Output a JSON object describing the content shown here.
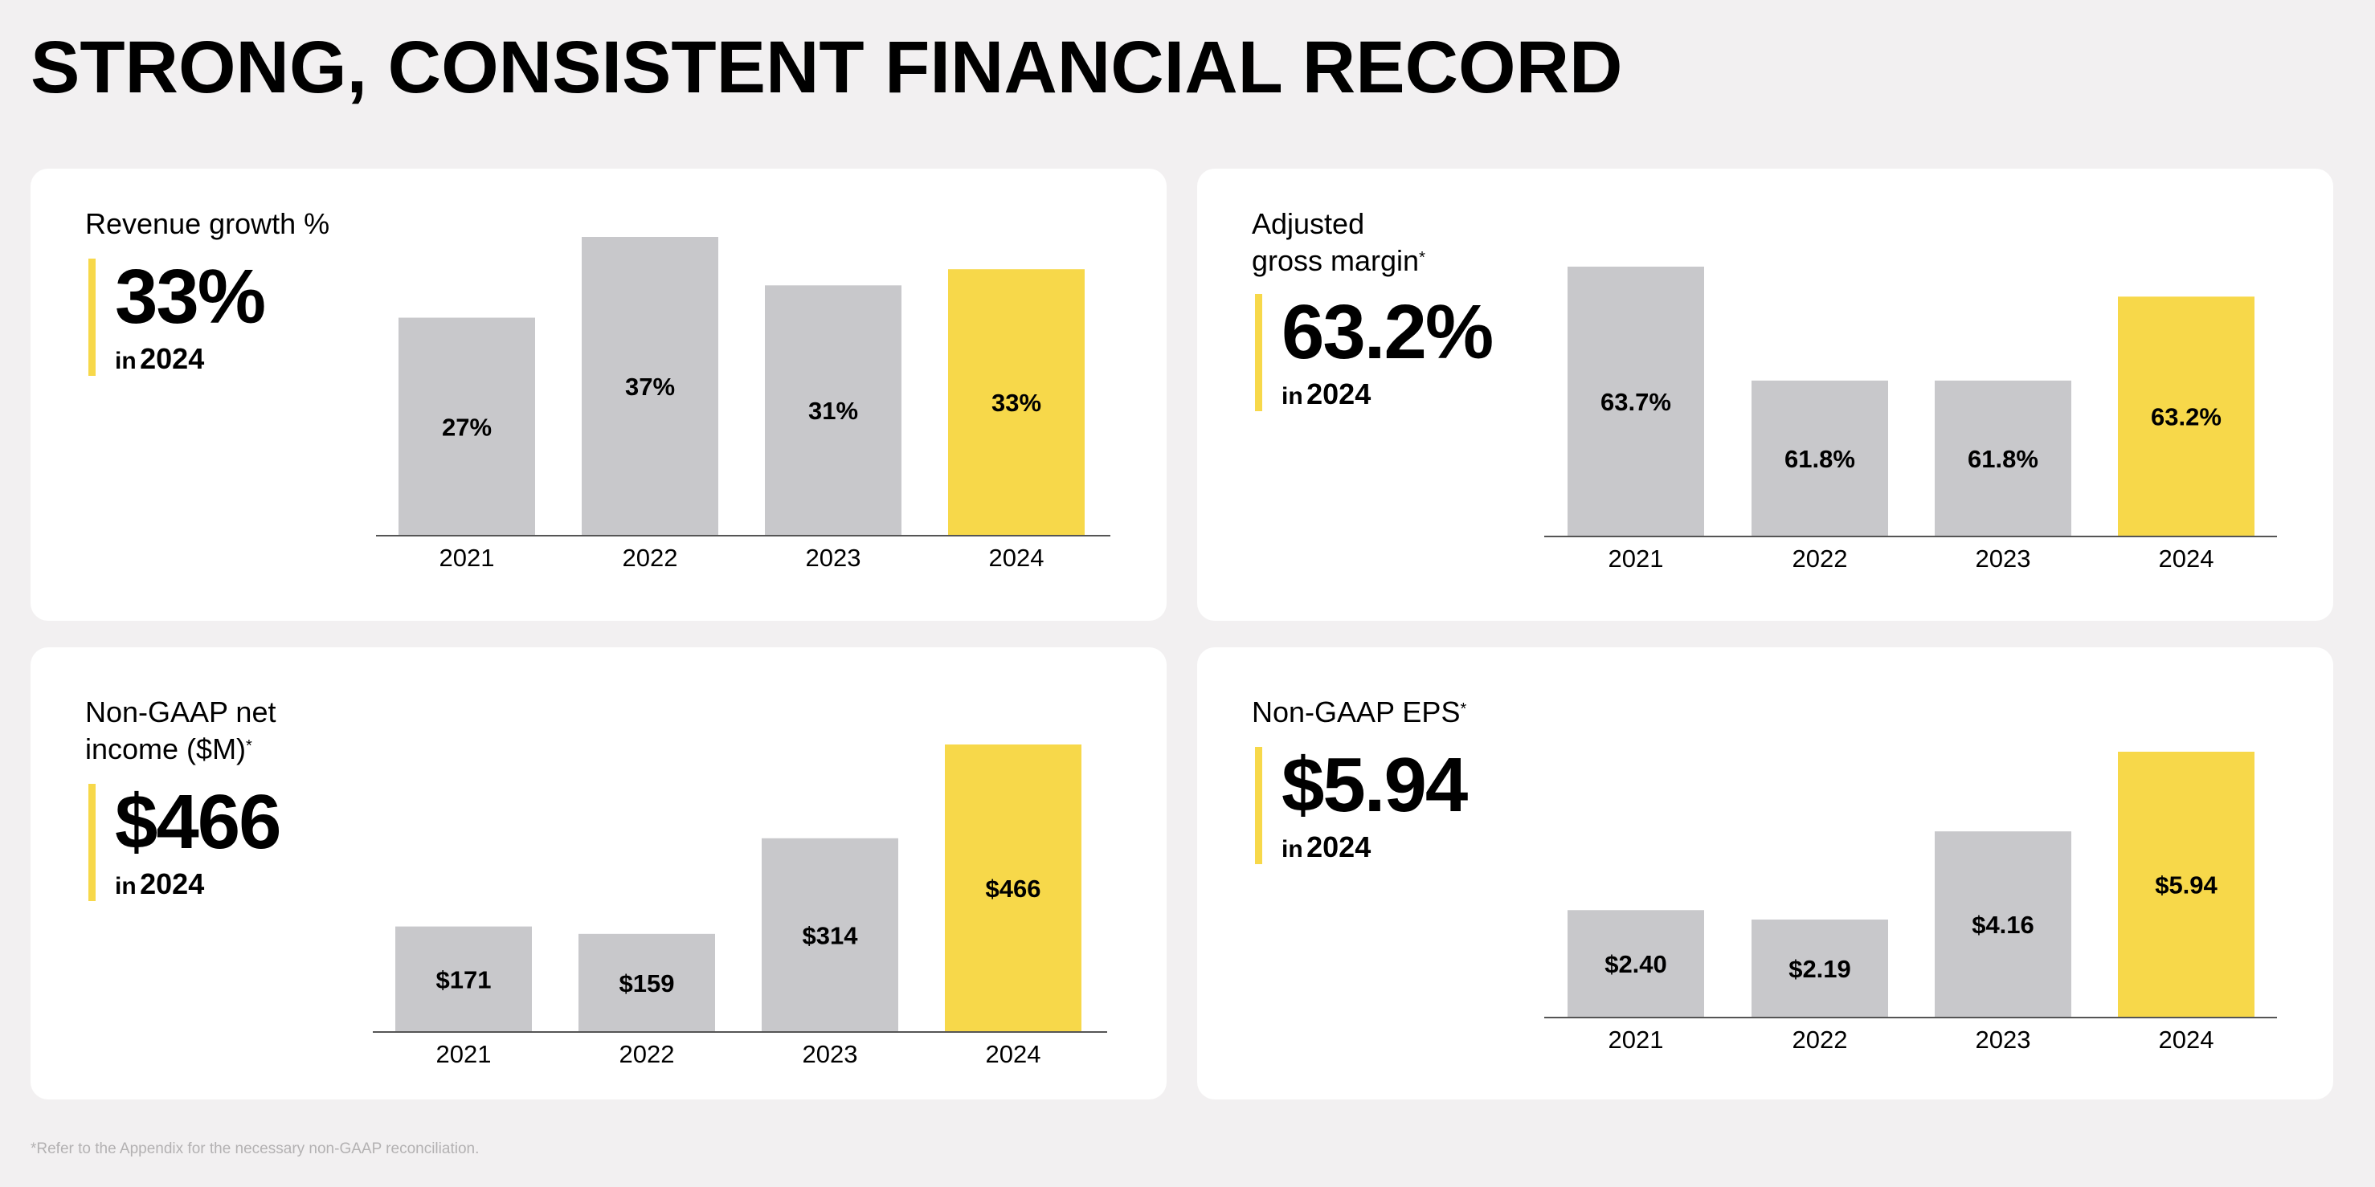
{
  "page_title": "STRONG, CONSISTENT FINANCIAL RECORD",
  "footnote": "*Refer to the Appendix for the necessary non-GAAP reconciliation.",
  "colors": {
    "bar": "#c8c8cb",
    "highlight": "#f7d84a",
    "background": "#f2f0f1",
    "card": "#ffffff"
  },
  "cards": [
    {
      "title_lines": [
        "Revenue growth %"
      ],
      "asterisk": "",
      "big_value": "33%",
      "in_label": "in",
      "year": "2024"
    },
    {
      "title_lines": [
        "Adjusted",
        "gross margin"
      ],
      "asterisk": "*",
      "big_value": "63.2%",
      "in_label": "in",
      "year": "2024"
    },
    {
      "title_lines": [
        "Non-GAAP net",
        "income ($M)"
      ],
      "asterisk": "*",
      "big_value": "$466",
      "in_label": "in",
      "year": "2024"
    },
    {
      "title_lines": [
        "Non-GAAP EPS"
      ],
      "asterisk": "*",
      "big_value": "$5.94",
      "in_label": "in",
      "year": "2024"
    }
  ],
  "chart_data": [
    {
      "type": "bar",
      "title": "Revenue growth %",
      "categories": [
        "2021",
        "2022",
        "2023",
        "2024"
      ],
      "values": [
        27,
        37,
        31,
        33
      ],
      "labels": [
        "27%",
        "37%",
        "31%",
        "33%"
      ],
      "highlight_index": 3,
      "ylim": [
        0,
        37
      ],
      "grid": false
    },
    {
      "type": "bar",
      "title": "Adjusted gross margin",
      "categories": [
        "2021",
        "2022",
        "2023",
        "2024"
      ],
      "values": [
        63.7,
        61.8,
        61.8,
        63.2
      ],
      "labels": [
        "63.7%",
        "61.8%",
        "61.8%",
        "63.2%"
      ],
      "highlight_index": 3,
      "ylim": [
        59.2,
        63.7
      ],
      "grid": false
    },
    {
      "type": "bar",
      "title": "Non-GAAP net income ($M)",
      "categories": [
        "2021",
        "2022",
        "2023",
        "2024"
      ],
      "values": [
        171,
        159,
        314,
        466
      ],
      "labels": [
        "$171",
        "$159",
        "$314",
        "$466"
      ],
      "highlight_index": 3,
      "ylim": [
        0,
        466
      ],
      "grid": false
    },
    {
      "type": "bar",
      "title": "Non-GAAP EPS",
      "categories": [
        "2021",
        "2022",
        "2023",
        "2024"
      ],
      "values": [
        2.4,
        2.19,
        4.16,
        5.94
      ],
      "labels": [
        "$2.40",
        "$2.19",
        "$4.16",
        "$5.94"
      ],
      "highlight_index": 3,
      "ylim": [
        0,
        5.94
      ],
      "grid": false
    }
  ]
}
